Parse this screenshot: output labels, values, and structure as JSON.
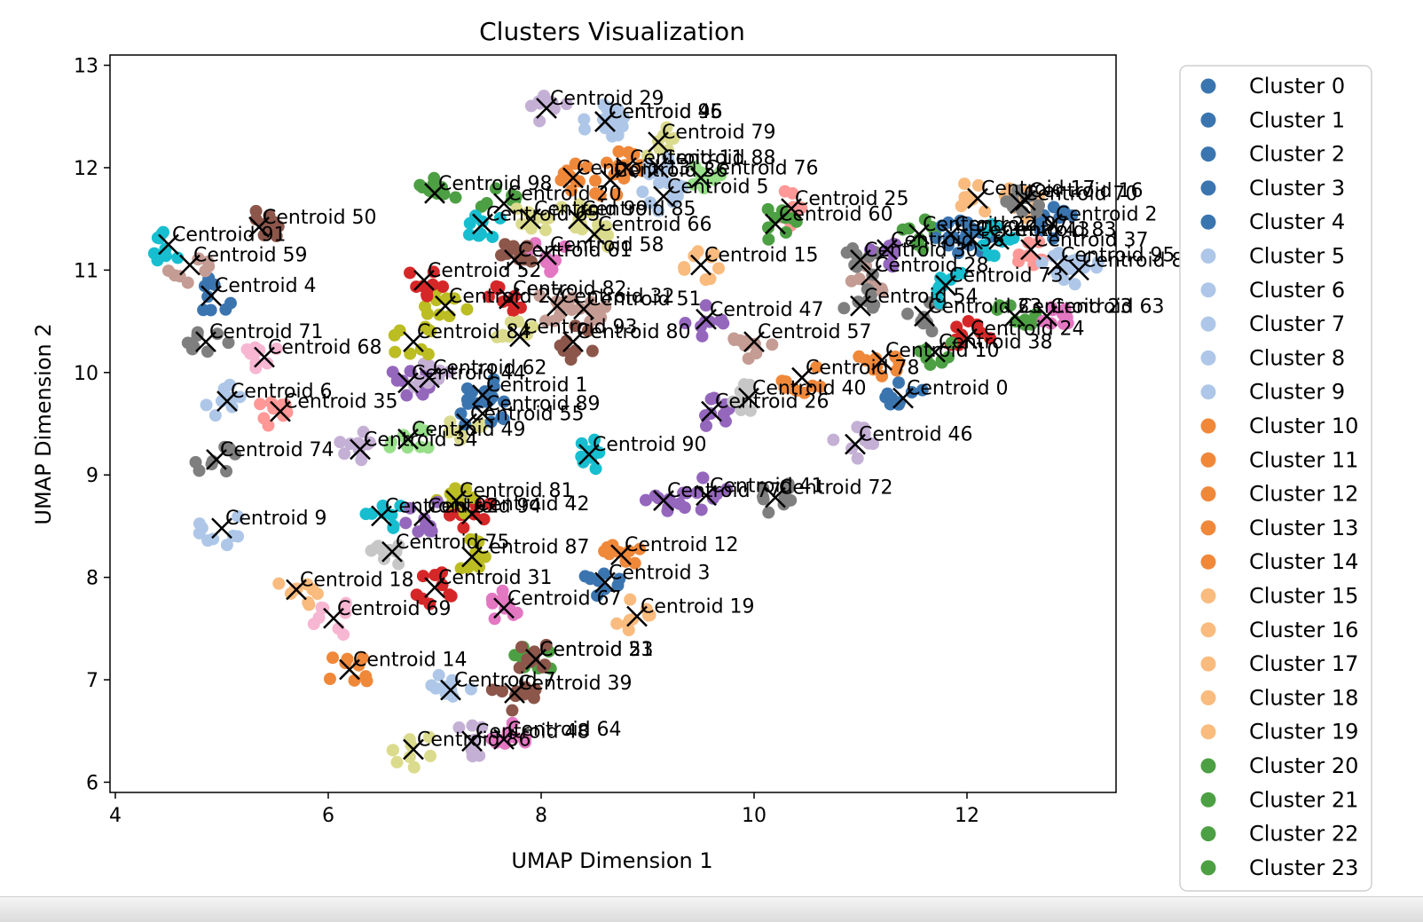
{
  "chart_data": {
    "type": "scatter",
    "title": "Clusters Visualization",
    "xlabel": "UMAP Dimension 1",
    "ylabel": "UMAP Dimension 2",
    "xlim": [
      3.95,
      13.4
    ],
    "ylim": [
      5.9,
      13.1
    ],
    "xticks": [
      4,
      6,
      8,
      10,
      12
    ],
    "yticks": [
      6,
      7,
      8,
      9,
      10,
      11,
      12,
      13
    ],
    "grid": false,
    "legend_position": "right, outside plot",
    "legend_visible_entries": [
      {
        "label": "Cluster 0",
        "color": "#3a75b0"
      },
      {
        "label": "Cluster 1",
        "color": "#3a75b0"
      },
      {
        "label": "Cluster 2",
        "color": "#3a75b0"
      },
      {
        "label": "Cluster 3",
        "color": "#3a75b0"
      },
      {
        "label": "Cluster 4",
        "color": "#3a75b0"
      },
      {
        "label": "Cluster 5",
        "color": "#aec7e8"
      },
      {
        "label": "Cluster 6",
        "color": "#aec7e8"
      },
      {
        "label": "Cluster 7",
        "color": "#aec7e8"
      },
      {
        "label": "Cluster 8",
        "color": "#aec7e8"
      },
      {
        "label": "Cluster 9",
        "color": "#aec7e8"
      },
      {
        "label": "Cluster 10",
        "color": "#f0883a"
      },
      {
        "label": "Cluster 11",
        "color": "#f0883a"
      },
      {
        "label": "Cluster 12",
        "color": "#f0883a"
      },
      {
        "label": "Cluster 13",
        "color": "#f0883a"
      },
      {
        "label": "Cluster 14",
        "color": "#f0883a"
      },
      {
        "label": "Cluster 15",
        "color": "#f9bb7e"
      },
      {
        "label": "Cluster 16",
        "color": "#f9bb7e"
      },
      {
        "label": "Cluster 17",
        "color": "#f9bb7e"
      },
      {
        "label": "Cluster 18",
        "color": "#f9bb7e"
      },
      {
        "label": "Cluster 19",
        "color": "#f9bb7e"
      },
      {
        "label": "Cluster 20",
        "color": "#4ca043"
      },
      {
        "label": "Cluster 21",
        "color": "#4ca043"
      },
      {
        "label": "Cluster 22",
        "color": "#4ca043"
      },
      {
        "label": "Cluster 23",
        "color": "#4ca043"
      }
    ],
    "centroids": [
      {
        "label": "Centroid 0",
        "x": 11.4,
        "y": 9.75,
        "color": "#3a75b0"
      },
      {
        "label": "Centroid 1",
        "x": 7.45,
        "y": 9.78,
        "color": "#3a75b0"
      },
      {
        "label": "Centroid 2",
        "x": 12.8,
        "y": 11.45,
        "color": "#3a75b0"
      },
      {
        "label": "Centroid 3",
        "x": 8.6,
        "y": 7.95,
        "color": "#3a75b0"
      },
      {
        "label": "Centroid 4",
        "x": 4.9,
        "y": 10.75,
        "color": "#3a75b0"
      },
      {
        "label": "Centroid 5",
        "x": 9.15,
        "y": 11.72,
        "color": "#aec7e8"
      },
      {
        "label": "Centroid 6",
        "x": 5.05,
        "y": 9.72,
        "color": "#aec7e8"
      },
      {
        "label": "Centroid 7",
        "x": 7.15,
        "y": 6.9,
        "color": "#aec7e8"
      },
      {
        "label": "Centroid 8",
        "x": 13.05,
        "y": 11.0,
        "color": "#aec7e8"
      },
      {
        "label": "Centroid 9",
        "x": 5.0,
        "y": 8.48,
        "color": "#aec7e8"
      },
      {
        "label": "Centroid 10",
        "x": 11.2,
        "y": 10.12,
        "color": "#f0883a"
      },
      {
        "label": "Centroid 11",
        "x": 8.8,
        "y": 12.0,
        "color": "#f0883a"
      },
      {
        "label": "Centroid 12",
        "x": 8.75,
        "y": 8.22,
        "color": "#f0883a"
      },
      {
        "label": "Centroid 13",
        "x": 8.3,
        "y": 11.9,
        "color": "#f0883a"
      },
      {
        "label": "Centroid 14",
        "x": 6.2,
        "y": 7.1,
        "color": "#f0883a"
      },
      {
        "label": "Centroid 15",
        "x": 9.5,
        "y": 11.05,
        "color": "#f9bb7e"
      },
      {
        "label": "Centroid 16",
        "x": 12.55,
        "y": 11.68,
        "color": "#f9bb7e"
      },
      {
        "label": "Centroid 17",
        "x": 12.1,
        "y": 11.7,
        "color": "#f9bb7e"
      },
      {
        "label": "Centroid 18",
        "x": 5.7,
        "y": 7.88,
        "color": "#f9bb7e"
      },
      {
        "label": "Centroid 19",
        "x": 8.9,
        "y": 7.62,
        "color": "#f9bb7e"
      },
      {
        "label": "Centroid 20",
        "x": 7.65,
        "y": 11.65,
        "color": "#4ca043"
      },
      {
        "label": "Centroid 21",
        "x": 7.95,
        "y": 7.2,
        "color": "#4ca043"
      },
      {
        "label": "Centroid 22",
        "x": 11.55,
        "y": 11.35,
        "color": "#4ca043"
      },
      {
        "label": "Centroid 23",
        "x": 12.45,
        "y": 10.55,
        "color": "#4ca043"
      },
      {
        "label": "Centroid 24",
        "x": 12.0,
        "y": 10.33,
        "color": "#d62728"
      },
      {
        "label": "Centroid 25",
        "x": 10.35,
        "y": 11.6,
        "color": "#ff9896"
      },
      {
        "label": "Centroid 26",
        "x": 9.6,
        "y": 9.62,
        "color": "#9467bd"
      },
      {
        "label": "Centroid 27",
        "x": 7.1,
        "y": 10.65,
        "color": "#bcbd22"
      },
      {
        "label": "Centroid 28",
        "x": 11.1,
        "y": 10.95,
        "color": "#c49c94"
      },
      {
        "label": "Centroid 29",
        "x": 8.05,
        "y": 12.58,
        "color": "#c5b0d5"
      },
      {
        "label": "Centroid 30",
        "x": 11.0,
        "y": 11.1,
        "color": "#7f7f7f"
      },
      {
        "label": "Centroid 31",
        "x": 7.0,
        "y": 7.9,
        "color": "#d62728"
      },
      {
        "label": "Centroid 32",
        "x": 8.15,
        "y": 10.65,
        "color": "#c49c94"
      },
      {
        "label": "Centroid 33",
        "x": 11.6,
        "y": 10.55,
        "color": "#7f7f7f"
      },
      {
        "label": "Centroid 34",
        "x": 6.3,
        "y": 9.25,
        "color": "#c5b0d5"
      },
      {
        "label": "Centroid 35",
        "x": 5.55,
        "y": 9.62,
        "color": "#ff9896"
      },
      {
        "label": "Centroid 36",
        "x": 8.65,
        "y": 11.88,
        "color": "#f0883a"
      },
      {
        "label": "Centroid 37",
        "x": 12.6,
        "y": 11.2,
        "color": "#ff9896"
      },
      {
        "label": "Centroid 38",
        "x": 11.7,
        "y": 10.2,
        "color": "#4ca043"
      },
      {
        "label": "Centroid 39",
        "x": 7.75,
        "y": 6.87,
        "color": "#8c564b"
      },
      {
        "label": "Centroid 40",
        "x": 9.95,
        "y": 9.75,
        "color": "#c7c7c7"
      },
      {
        "label": "Centroid 41",
        "x": 9.55,
        "y": 8.8,
        "color": "#9467bd"
      },
      {
        "label": "Centroid 42",
        "x": 7.35,
        "y": 8.62,
        "color": "#d62728"
      },
      {
        "label": "Centroid 43",
        "x": 12.05,
        "y": 11.3,
        "color": "#3a75b0"
      },
      {
        "label": "Centroid 44",
        "x": 6.75,
        "y": 9.9,
        "color": "#9467bd"
      },
      {
        "label": "Centroid 45",
        "x": 8.6,
        "y": 12.45,
        "color": "#aec7e8"
      },
      {
        "label": "Centroid 46",
        "x": 10.95,
        "y": 9.3,
        "color": "#c5b0d5"
      },
      {
        "label": "Centroid 47",
        "x": 9.55,
        "y": 10.52,
        "color": "#9467bd"
      },
      {
        "label": "Centroid 48",
        "x": 7.35,
        "y": 6.4,
        "color": "#c5b0d5"
      },
      {
        "label": "Centroid 49",
        "x": 6.75,
        "y": 9.35,
        "color": "#98df8a"
      },
      {
        "label": "Centroid 50",
        "x": 5.35,
        "y": 11.42,
        "color": "#8c564b"
      },
      {
        "label": "Centroid 51",
        "x": 8.4,
        "y": 10.62,
        "color": "#c49c94"
      },
      {
        "label": "Centroid 52",
        "x": 6.9,
        "y": 10.9,
        "color": "#d62728"
      },
      {
        "label": "Centroid 53",
        "x": 7.95,
        "y": 7.2,
        "color": "#8c564b"
      },
      {
        "label": "Centroid 54",
        "x": 11.0,
        "y": 10.65,
        "color": "#7f7f7f"
      },
      {
        "label": "Centroid 55",
        "x": 7.3,
        "y": 9.5,
        "color": "#dbdb8d"
      },
      {
        "label": "Centroid 56",
        "x": 11.25,
        "y": 11.2,
        "color": "#9467bd"
      },
      {
        "label": "Centroid 57",
        "x": 10.0,
        "y": 10.3,
        "color": "#c49c94"
      },
      {
        "label": "Centroid 58",
        "x": 8.05,
        "y": 11.15,
        "color": "#e377c2"
      },
      {
        "label": "Centroid 59",
        "x": 4.7,
        "y": 11.05,
        "color": "#c49c94"
      },
      {
        "label": "Centroid 60",
        "x": 10.2,
        "y": 11.45,
        "color": "#4ca043"
      },
      {
        "label": "Centroid 61",
        "x": 7.75,
        "y": 11.1,
        "color": "#8c564b"
      },
      {
        "label": "Centroid 62",
        "x": 6.95,
        "y": 9.95,
        "color": "#c5b0d5"
      },
      {
        "label": "Centroid 63",
        "x": 12.75,
        "y": 10.55,
        "color": "#e377c2"
      },
      {
        "label": "Centroid 64",
        "x": 7.65,
        "y": 6.42,
        "color": "#e377c2"
      },
      {
        "label": "Centroid 65",
        "x": 7.45,
        "y": 11.45,
        "color": "#17becf"
      },
      {
        "label": "Centroid 66",
        "x": 8.5,
        "y": 11.35,
        "color": "#dbdb8d"
      },
      {
        "label": "Centroid 67",
        "x": 7.65,
        "y": 7.7,
        "color": "#e377c2"
      },
      {
        "label": "Centroid 68",
        "x": 5.4,
        "y": 10.15,
        "color": "#f7b6d2"
      },
      {
        "label": "Centroid 69",
        "x": 6.05,
        "y": 7.6,
        "color": "#f7b6d2"
      },
      {
        "label": "Centroid 70",
        "x": 12.5,
        "y": 11.65,
        "color": "#7f7f7f"
      },
      {
        "label": "Centroid 71",
        "x": 4.85,
        "y": 10.3,
        "color": "#7f7f7f"
      },
      {
        "label": "Centroid 72",
        "x": 10.2,
        "y": 8.78,
        "color": "#7f7f7f"
      },
      {
        "label": "Centroid 73",
        "x": 11.8,
        "y": 10.85,
        "color": "#17becf"
      },
      {
        "label": "Centroid 74",
        "x": 4.95,
        "y": 9.15,
        "color": "#7f7f7f"
      },
      {
        "label": "Centroid 75",
        "x": 6.6,
        "y": 8.25,
        "color": "#c7c7c7"
      },
      {
        "label": "Centroid 76",
        "x": 9.5,
        "y": 11.9,
        "color": "#98df8a"
      },
      {
        "label": "Centroid 77",
        "x": 9.15,
        "y": 8.75,
        "color": "#9467bd"
      },
      {
        "label": "Centroid 78",
        "x": 10.45,
        "y": 9.95,
        "color": "#f0883a"
      },
      {
        "label": "Centroid 79",
        "x": 9.1,
        "y": 12.25,
        "color": "#dbdb8d"
      },
      {
        "label": "Centroid 80",
        "x": 8.3,
        "y": 10.3,
        "color": "#8c564b"
      },
      {
        "label": "Centroid 81",
        "x": 7.2,
        "y": 8.75,
        "color": "#bcbd22"
      },
      {
        "label": "Centroid 82",
        "x": 7.7,
        "y": 10.72,
        "color": "#d62728"
      },
      {
        "label": "Centroid 83",
        "x": 12.3,
        "y": 11.3,
        "color": "#17becf"
      },
      {
        "label": "Centroid 84",
        "x": 6.8,
        "y": 10.3,
        "color": "#bcbd22"
      },
      {
        "label": "Centroid 85",
        "x": 8.35,
        "y": 11.5,
        "color": "#dbdb8d"
      },
      {
        "label": "Centroid 86",
        "x": 6.8,
        "y": 6.32,
        "color": "#dbdb8d"
      },
      {
        "label": "Centroid 87",
        "x": 7.35,
        "y": 8.2,
        "color": "#bcbd22"
      },
      {
        "label": "Centroid 88",
        "x": 9.1,
        "y": 12.0,
        "color": "#aec7e8"
      },
      {
        "label": "Centroid 89",
        "x": 7.45,
        "y": 9.6,
        "color": "#3a75b0"
      },
      {
        "label": "Centroid 90",
        "x": 8.45,
        "y": 9.2,
        "color": "#17becf"
      },
      {
        "label": "Centroid 91",
        "x": 4.5,
        "y": 11.25,
        "color": "#17becf"
      },
      {
        "label": "Centroid 92",
        "x": 6.5,
        "y": 8.6,
        "color": "#17becf"
      },
      {
        "label": "Centroid 93",
        "x": 7.8,
        "y": 10.35,
        "color": "#dbdb8d"
      },
      {
        "label": "Centroid 94",
        "x": 6.9,
        "y": 8.6,
        "color": "#9467bd"
      },
      {
        "label": "Centroid 95",
        "x": 12.85,
        "y": 11.05,
        "color": "#aec7e8"
      },
      {
        "label": "Centroid 96",
        "x": 8.6,
        "y": 12.45,
        "color": "#aec7e8"
      },
      {
        "label": "Centroid 97",
        "x": 11.85,
        "y": 11.35,
        "color": "#3a75b0"
      },
      {
        "label": "Centroid 98",
        "x": 7.0,
        "y": 11.75,
        "color": "#4ca043"
      },
      {
        "label": "Centroid 99",
        "x": 7.9,
        "y": 11.5,
        "color": "#dbdb8d"
      }
    ]
  }
}
